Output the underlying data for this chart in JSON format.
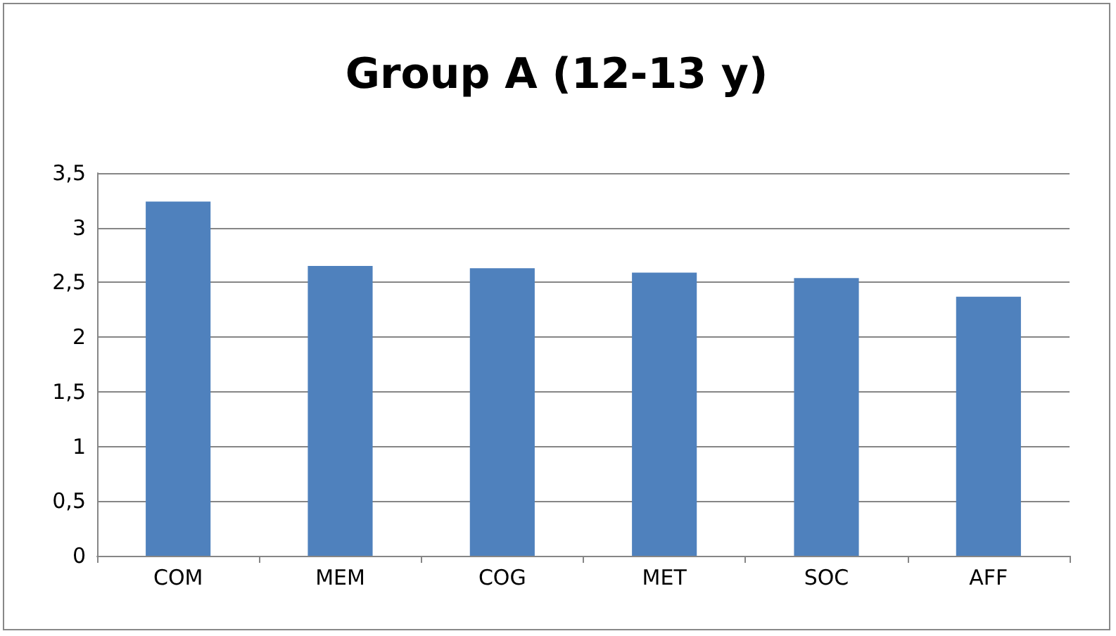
{
  "chart_data": {
    "type": "bar",
    "title": "Group A (12-13 y)",
    "categories": [
      "COM",
      "MEM",
      "COG",
      "MET",
      "SOC",
      "AFF"
    ],
    "values": [
      3.24,
      2.65,
      2.63,
      2.59,
      2.54,
      2.37
    ],
    "color": "#4f81bd",
    "ylim": [
      0,
      3.5
    ],
    "yticks": [
      0,
      {
        "value": 0.5,
        "label": "0,5"
      },
      1,
      {
        "value": 1.5,
        "label": "1,5"
      },
      2,
      {
        "value": 2.5,
        "label": "2,5"
      },
      3,
      {
        "value": 3.5,
        "label": "3,5"
      }
    ],
    "grid": "y"
  }
}
